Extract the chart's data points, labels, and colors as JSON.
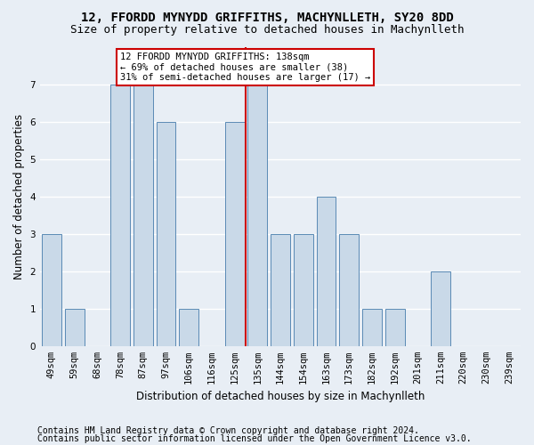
{
  "title1": "12, FFORDD MYNYDD GRIFFITHS, MACHYNLLETH, SY20 8DD",
  "title2": "Size of property relative to detached houses in Machynlleth",
  "xlabel": "Distribution of detached houses by size in Machynlleth",
  "ylabel": "Number of detached properties",
  "categories": [
    "49sqm",
    "59sqm",
    "68sqm",
    "78sqm",
    "87sqm",
    "97sqm",
    "106sqm",
    "116sqm",
    "125sqm",
    "135sqm",
    "144sqm",
    "154sqm",
    "163sqm",
    "173sqm",
    "182sqm",
    "192sqm",
    "201sqm",
    "211sqm",
    "220sqm",
    "230sqm",
    "239sqm"
  ],
  "values": [
    3,
    1,
    0,
    7,
    7,
    6,
    1,
    0,
    6,
    7,
    3,
    3,
    4,
    3,
    1,
    1,
    0,
    2,
    0,
    0,
    0
  ],
  "bar_color": "#c9d9e8",
  "bar_edge_color": "#5a8ab5",
  "reference_line_x": 8.5,
  "annotation_text": "12 FFORDD MYNYDD GRIFFITHS: 138sqm\n← 69% of detached houses are smaller (38)\n31% of semi-detached houses are larger (17) →",
  "ylim": [
    0,
    8
  ],
  "yticks": [
    0,
    1,
    2,
    3,
    4,
    5,
    6,
    7
  ],
  "footer1": "Contains HM Land Registry data © Crown copyright and database right 2024.",
  "footer2": "Contains public sector information licensed under the Open Government Licence v3.0.",
  "bg_color": "#e8eef5",
  "grid_color": "#ffffff",
  "annotation_box_color": "#ffffff",
  "annotation_box_edge": "#cc0000",
  "line_color": "#cc0000",
  "title_fontsize": 10,
  "subtitle_fontsize": 9,
  "label_fontsize": 8.5,
  "tick_fontsize": 7.5,
  "footer_fontsize": 7
}
